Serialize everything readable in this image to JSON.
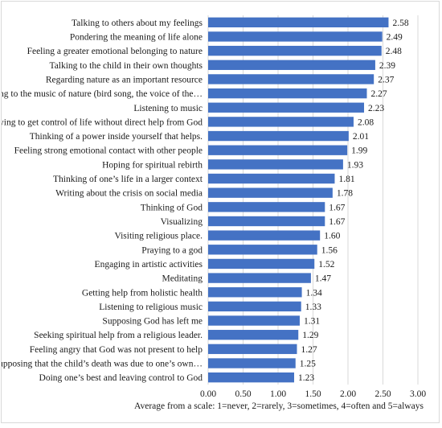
{
  "chart_data": {
    "type": "bar",
    "orientation": "horizontal",
    "title": "",
    "xlabel": "Average from a scale: 1=never, 2=rarely, 3=sometimes, 4=often and 5=always",
    "ylabel": "",
    "xlim": [
      0,
      3
    ],
    "x_ticks": [
      "0.00",
      "0.50",
      "1.00",
      "1.50",
      "2.00",
      "2.50",
      "3.00"
    ],
    "grid": "vertical",
    "bar_color": "#4472c4",
    "categories": [
      "Talking to others about my feelings",
      "Pondering the meaning of life alone",
      "Feeling a greater emotional belonging to nature",
      "Talking to the child in their own thoughts",
      "Regarding nature as an important resource",
      "Listening to the music of nature (bird song, the voice of the…",
      "Listening to music",
      "Trying to get control of life without direct help from God",
      "Thinking of a power inside yourself that helps.",
      "Feeling strong emotional contact with other people",
      "Hoping for spiritual rebirth",
      "Thinking of one’s life in a larger context",
      "Writing about the crisis on social media",
      "Thinking of God",
      "Visualizing",
      "Visiting religious place.",
      "Praying to a god",
      "Engaging in artistic activities",
      "Meditating",
      "Getting help from holistic health",
      "Listening to religious music",
      "Supposing God has left me",
      "Seeking spiritual help from a religious leader.",
      "Feeling angry that God was not present to help",
      "Supposing that the child’s death was due to one’s own…",
      "Doing one’s best and leaving control to God"
    ],
    "values": [
      2.58,
      2.49,
      2.48,
      2.39,
      2.37,
      2.27,
      2.23,
      2.08,
      2.01,
      1.99,
      1.93,
      1.81,
      1.78,
      1.67,
      1.67,
      1.6,
      1.56,
      1.52,
      1.47,
      1.34,
      1.33,
      1.31,
      1.29,
      1.27,
      1.25,
      1.23
    ],
    "value_labels": [
      "2.58",
      "2.49",
      "2.48",
      "2.39",
      "2.37",
      "2.27",
      "2.23",
      "2.08",
      "2.01",
      "1.99",
      "1.93",
      "1.81",
      "1.78",
      "1.67",
      "1.67",
      "1.60",
      "1.56",
      "1.52",
      "1.47",
      "1.34",
      "1.33",
      "1.31",
      "1.29",
      "1.27",
      "1.25",
      "1.23"
    ]
  }
}
